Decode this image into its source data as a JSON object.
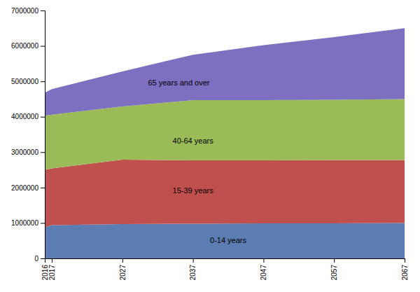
{
  "chart_data": {
    "type": "area",
    "stacked": true,
    "grid": false,
    "x": [
      2016,
      2017,
      2027,
      2037,
      2047,
      2057,
      2067
    ],
    "series": [
      {
        "color": "#5b7db1",
        "values": [
          880000,
          940000,
          970000,
          980000,
          990000,
          990000,
          1000000
        ]
      },
      {
        "color": "#c0504d",
        "values": [
          1620000,
          1600000,
          1820000,
          1790000,
          1780000,
          1790000,
          1780000
        ]
      },
      {
        "color": "#9bbb59",
        "values": [
          1530000,
          1520000,
          1500000,
          1700000,
          1700000,
          1700000,
          1720000
        ]
      },
      {
        "color": "#7f6fc0",
        "values": [
          650000,
          720000,
          990000,
          1280000,
          1550000,
          1770000,
          2000000
        ]
      }
    ],
    "xlim": [
      2016,
      2067
    ],
    "xticks": [
      2016,
      2017,
      2027,
      2037,
      2047,
      2057,
      2067
    ],
    "ylim": [
      0,
      7000000
    ],
    "yticks": [
      0,
      1000000,
      2000000,
      3000000,
      4000000,
      5000000,
      6000000,
      7000000
    ],
    "annotations": [
      {
        "text": "0-14 years",
        "x": 2042,
        "y": 490000
      },
      {
        "text": "15-39 years",
        "x": 2037,
        "y": 1900000
      },
      {
        "text": "40-64 years",
        "x": 2037,
        "y": 3300000
      },
      {
        "text": "65 years and over",
        "x": 2035,
        "y": 4950000
      }
    ]
  }
}
